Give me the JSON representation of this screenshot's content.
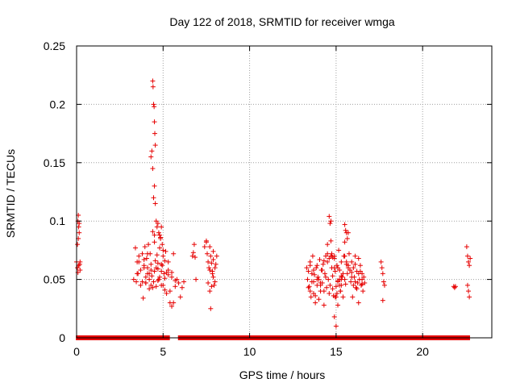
{
  "chart_data": {
    "type": "scatter",
    "title": "Day 122 of 2018, SRMTID for receiver wmga",
    "xlabel": "GPS time / hours",
    "ylabel": "SRMTID / TECUs",
    "xlim": [
      0,
      24
    ],
    "ylim": [
      0,
      0.25
    ],
    "xticks": [
      0,
      5,
      10,
      15,
      20
    ],
    "xtick_labels": [
      "0",
      "5",
      "10",
      "15",
      "20"
    ],
    "yticks": [
      0,
      0.05,
      0.1,
      0.15,
      0.2,
      0.25
    ],
    "ytick_labels": [
      "0",
      "0.05",
      "0.1",
      "0.15",
      "0.2",
      "0.25"
    ],
    "grid": true,
    "marker": "+",
    "color": "#e60000",
    "series": [
      {
        "name": "SRMTID",
        "x": [
          0.0,
          0.05,
          0.08,
          0.1,
          0.12,
          0.15,
          0.18,
          0.2,
          0.05,
          0.1,
          0.15,
          0.2,
          0.08,
          0.12,
          3.3,
          3.4,
          3.45,
          3.5,
          3.55,
          3.6,
          3.7,
          3.8,
          3.85,
          3.9,
          3.95,
          4.0,
          4.05,
          4.1,
          4.15,
          4.2,
          4.25,
          4.3,
          4.35,
          4.4,
          4.45,
          4.5,
          4.55,
          4.6,
          4.65,
          4.7,
          4.75,
          4.8,
          4.85,
          4.9,
          4.95,
          5.0,
          5.05,
          5.1,
          5.15,
          5.2,
          5.3,
          5.4,
          5.5,
          5.6,
          5.7,
          5.8,
          5.9,
          6.0,
          6.1,
          6.2,
          4.4,
          4.42,
          4.45,
          4.48,
          4.5,
          4.52,
          4.55,
          4.3,
          4.35,
          4.4,
          4.45,
          4.5,
          4.55,
          4.6,
          4.65,
          4.7,
          4.75,
          4.8,
          4.85,
          4.9,
          4.95,
          5.0,
          3.5,
          3.6,
          3.7,
          3.8,
          3.9,
          4.0,
          4.1,
          4.2,
          4.3,
          4.5,
          4.7,
          4.9,
          5.1,
          5.3,
          5.5,
          4.0,
          4.2,
          4.4,
          4.6,
          4.8,
          5.0,
          5.2,
          5.4,
          5.6,
          3.9,
          4.1,
          4.3,
          4.5,
          4.7,
          4.9,
          5.1,
          5.3,
          5.5,
          5.7,
          6.7,
          6.75,
          6.8,
          6.85,
          6.9,
          7.4,
          7.5,
          7.55,
          7.6,
          7.65,
          7.7,
          7.75,
          7.8,
          7.85,
          7.9,
          7.95,
          8.0,
          8.05,
          8.1,
          7.6,
          7.7,
          7.8,
          7.9,
          8.0,
          7.75,
          7.85,
          7.5,
          7.7,
          7.9,
          13.3,
          13.35,
          13.4,
          13.45,
          13.5,
          13.55,
          13.6,
          13.65,
          13.7,
          13.75,
          13.8,
          13.85,
          13.9,
          13.95,
          14.0,
          14.05,
          14.1,
          14.15,
          14.2,
          14.25,
          14.3,
          14.35,
          14.4,
          14.45,
          14.5,
          14.55,
          14.6,
          14.65,
          14.7,
          14.75,
          14.8,
          14.85,
          14.9,
          14.95,
          15.0,
          15.05,
          15.1,
          15.15,
          15.2,
          15.25,
          15.3,
          15.35,
          15.4,
          15.45,
          15.5,
          15.55,
          15.6,
          15.65,
          15.7,
          15.75,
          15.8,
          15.85,
          15.9,
          15.95,
          16.0,
          16.05,
          16.1,
          16.15,
          16.2,
          16.25,
          16.3,
          16.35,
          16.4,
          16.45,
          16.5,
          16.55,
          16.6,
          16.65,
          13.4,
          13.5,
          13.6,
          13.7,
          13.8,
          13.9,
          14.0,
          14.1,
          14.2,
          14.3,
          14.4,
          14.5,
          14.6,
          14.7,
          14.8,
          14.9,
          15.0,
          15.1,
          15.2,
          15.3,
          15.4,
          15.5,
          15.6,
          15.7,
          15.8,
          15.9,
          16.0,
          16.1,
          16.2,
          16.3,
          16.4,
          16.5,
          13.5,
          13.7,
          13.9,
          14.1,
          14.3,
          14.5,
          14.7,
          14.9,
          15.1,
          15.3,
          15.5,
          15.7,
          15.9,
          16.1,
          16.3,
          16.5,
          14.6,
          14.65,
          14.7,
          14.75,
          14.8,
          15.5,
          15.55,
          15.6,
          15.65,
          14.9,
          15.0,
          15.1,
          15.2,
          15.25,
          15.3,
          14.95,
          15.05,
          17.6,
          17.65,
          17.7,
          17.75,
          17.8,
          17.7,
          21.8,
          21.85,
          21.9,
          22.55,
          22.6,
          22.65,
          22.7,
          22.75,
          22.6,
          22.7,
          22.65
        ],
        "y": [
          0.065,
          0.08,
          0.1,
          0.105,
          0.095,
          0.09,
          0.063,
          0.058,
          0.06,
          0.085,
          0.098,
          0.065,
          0.056,
          0.062,
          0.05,
          0.077,
          0.048,
          0.065,
          0.055,
          0.07,
          0.045,
          0.072,
          0.034,
          0.06,
          0.078,
          0.047,
          0.068,
          0.055,
          0.08,
          0.042,
          0.072,
          0.063,
          0.053,
          0.091,
          0.048,
          0.082,
          0.066,
          0.044,
          0.071,
          0.059,
          0.05,
          0.077,
          0.086,
          0.045,
          0.062,
          0.07,
          0.055,
          0.041,
          0.074,
          0.038,
          0.065,
          0.03,
          0.056,
          0.072,
          0.044,
          0.05,
          0.047,
          0.035,
          0.043,
          0.048,
          0.22,
          0.215,
          0.2,
          0.198,
          0.185,
          0.175,
          0.165,
          0.155,
          0.16,
          0.145,
          0.12,
          0.13,
          0.115,
          0.1,
          0.095,
          0.098,
          0.09,
          0.088,
          0.085,
          0.095,
          0.08,
          0.075,
          0.055,
          0.065,
          0.058,
          0.048,
          0.062,
          0.052,
          0.06,
          0.05,
          0.045,
          0.057,
          0.049,
          0.063,
          0.051,
          0.058,
          0.052,
          0.047,
          0.055,
          0.043,
          0.06,
          0.052,
          0.045,
          0.056,
          0.04,
          0.03,
          0.067,
          0.072,
          0.058,
          0.088,
          0.064,
          0.057,
          0.066,
          0.054,
          0.027,
          0.049,
          0.07,
          0.073,
          0.08,
          0.069,
          0.05,
          0.078,
          0.082,
          0.072,
          0.065,
          0.06,
          0.058,
          0.07,
          0.064,
          0.055,
          0.067,
          0.045,
          0.06,
          0.063,
          0.07,
          0.047,
          0.04,
          0.044,
          0.052,
          0.048,
          0.025,
          0.057,
          0.083,
          0.078,
          0.074,
          0.06,
          0.05,
          0.057,
          0.044,
          0.065,
          0.035,
          0.048,
          0.07,
          0.038,
          0.054,
          0.03,
          0.06,
          0.045,
          0.052,
          0.033,
          0.067,
          0.04,
          0.058,
          0.047,
          0.063,
          0.028,
          0.055,
          0.07,
          0.043,
          0.08,
          0.05,
          0.068,
          0.045,
          0.1,
          0.06,
          0.053,
          0.036,
          0.07,
          0.057,
          0.044,
          0.062,
          0.049,
          0.075,
          0.058,
          0.04,
          0.065,
          0.052,
          0.035,
          0.07,
          0.082,
          0.046,
          0.063,
          0.055,
          0.09,
          0.072,
          0.058,
          0.048,
          0.065,
          0.035,
          0.06,
          0.052,
          0.07,
          0.043,
          0.057,
          0.047,
          0.03,
          0.05,
          0.062,
          0.045,
          0.055,
          0.04,
          0.052,
          0.047,
          0.043,
          0.04,
          0.055,
          0.048,
          0.036,
          0.062,
          0.05,
          0.045,
          0.058,
          0.04,
          0.052,
          0.065,
          0.038,
          0.07,
          0.042,
          0.06,
          0.035,
          0.048,
          0.05,
          0.045,
          0.055,
          0.07,
          0.065,
          0.06,
          0.058,
          0.052,
          0.045,
          0.048,
          0.042,
          0.068,
          0.057,
          0.046,
          0.062,
          0.058,
          0.05,
          0.047,
          0.066,
          0.072,
          0.07,
          0.068,
          0.06,
          0.053,
          0.05,
          0.062,
          0.056,
          0.063,
          0.055,
          0.05,
          0.104,
          0.098,
          0.083,
          0.072,
          0.069,
          0.097,
          0.092,
          0.09,
          0.085,
          0.018,
          0.01,
          0.028,
          0.045,
          0.04,
          0.05,
          0.035,
          0.038,
          0.065,
          0.06,
          0.055,
          0.048,
          0.045,
          0.032,
          0.044,
          0.043,
          0.044,
          0.078,
          0.07,
          0.065,
          0.062,
          0.068,
          0.045,
          0.035,
          0.04
        ]
      },
      {
        "name": "SRMTID (zero)",
        "segments": [
          [
            0.1,
            3.3
          ],
          [
            3.4,
            3.6
          ],
          [
            3.65,
            4.0
          ],
          [
            4.1,
            4.15
          ],
          [
            4.2,
            5.0
          ],
          [
            5.2,
            5.25
          ],
          [
            6.0,
            6.5
          ],
          [
            6.6,
            7.2
          ],
          [
            7.3,
            7.5
          ],
          [
            7.6,
            8.2
          ],
          [
            8.3,
            13.3
          ],
          [
            13.5,
            14.6
          ],
          [
            14.8,
            14.85
          ],
          [
            15.0,
            15.8
          ],
          [
            15.9,
            16.1
          ],
          [
            16.3,
            16.4
          ],
          [
            16.6,
            22.6
          ]
        ]
      }
    ]
  }
}
